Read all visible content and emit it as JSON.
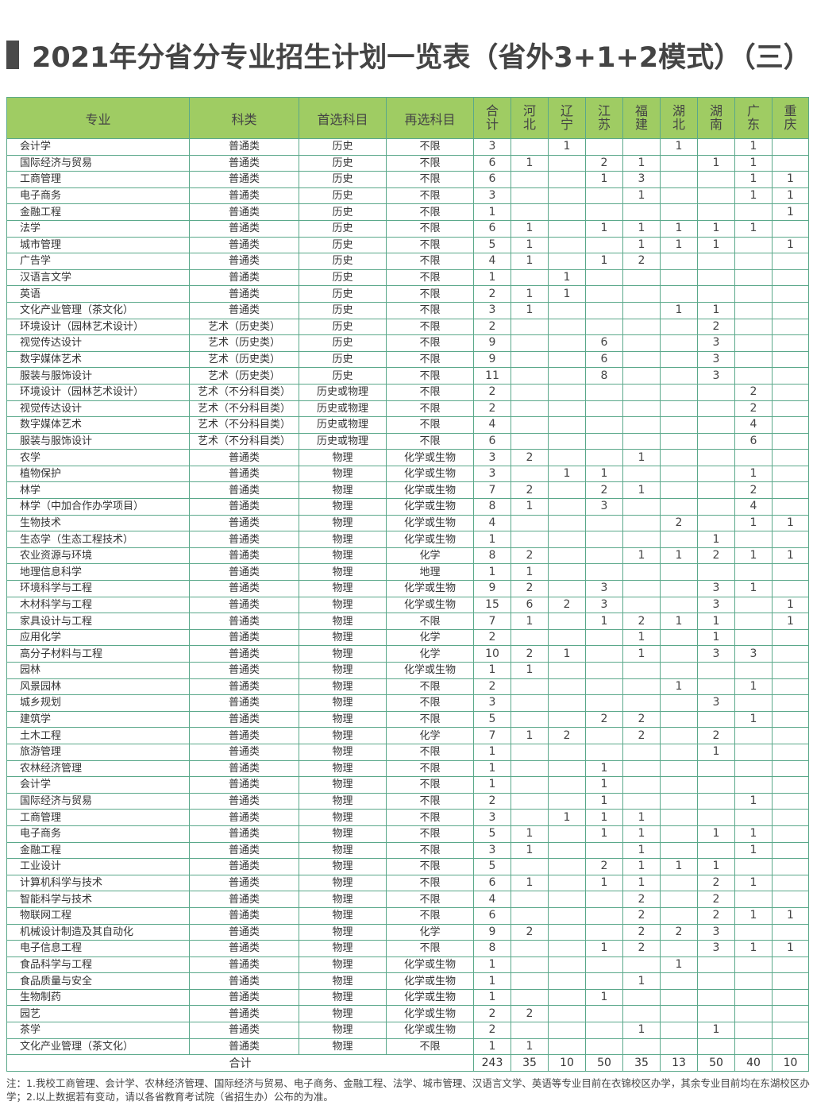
{
  "title": "2021年分省分专业招生计划一览表（省外3+1+2模式）（三）",
  "header": {
    "major": "专业",
    "category": "科类",
    "first_subject": "首选科目",
    "second_subject": "再选科目",
    "total": "合计",
    "provinces": [
      "河北",
      "辽宁",
      "江苏",
      "福建",
      "湖北",
      "湖南",
      "广东",
      "重庆"
    ]
  },
  "rows": [
    [
      "会计学",
      "普通类",
      "历史",
      "不限",
      "3",
      "",
      "1",
      "",
      "",
      "1",
      "",
      "1",
      ""
    ],
    [
      "国际经济与贸易",
      "普通类",
      "历史",
      "不限",
      "6",
      "1",
      "",
      "2",
      "1",
      "",
      "1",
      "1",
      ""
    ],
    [
      "工商管理",
      "普通类",
      "历史",
      "不限",
      "6",
      "",
      "",
      "1",
      "3",
      "",
      "",
      "1",
      "1"
    ],
    [
      "电子商务",
      "普通类",
      "历史",
      "不限",
      "3",
      "",
      "",
      "",
      "1",
      "",
      "",
      "1",
      "1"
    ],
    [
      "金融工程",
      "普通类",
      "历史",
      "不限",
      "1",
      "",
      "",
      "",
      "",
      "",
      "",
      "",
      "1"
    ],
    [
      "法学",
      "普通类",
      "历史",
      "不限",
      "6",
      "1",
      "",
      "1",
      "1",
      "1",
      "1",
      "1",
      ""
    ],
    [
      "城市管理",
      "普通类",
      "历史",
      "不限",
      "5",
      "1",
      "",
      "",
      "1",
      "1",
      "1",
      "",
      "1"
    ],
    [
      "广告学",
      "普通类",
      "历史",
      "不限",
      "4",
      "1",
      "",
      "1",
      "2",
      "",
      "",
      "",
      ""
    ],
    [
      "汉语言文学",
      "普通类",
      "历史",
      "不限",
      "1",
      "",
      "1",
      "",
      "",
      "",
      "",
      "",
      ""
    ],
    [
      "英语",
      "普通类",
      "历史",
      "不限",
      "2",
      "1",
      "1",
      "",
      "",
      "",
      "",
      "",
      ""
    ],
    [
      "文化产业管理（茶文化）",
      "普通类",
      "历史",
      "不限",
      "3",
      "1",
      "",
      "",
      "",
      "1",
      "1",
      "",
      ""
    ],
    [
      "环境设计（园林艺术设计）",
      "艺术（历史类）",
      "历史",
      "不限",
      "2",
      "",
      "",
      "",
      "",
      "",
      "2",
      "",
      ""
    ],
    [
      "视觉传达设计",
      "艺术（历史类）",
      "历史",
      "不限",
      "9",
      "",
      "",
      "6",
      "",
      "",
      "3",
      "",
      ""
    ],
    [
      "数字媒体艺术",
      "艺术（历史类）",
      "历史",
      "不限",
      "9",
      "",
      "",
      "6",
      "",
      "",
      "3",
      "",
      ""
    ],
    [
      "服装与服饰设计",
      "艺术（历史类）",
      "历史",
      "不限",
      "11",
      "",
      "",
      "8",
      "",
      "",
      "3",
      "",
      ""
    ],
    [
      "环境设计（园林艺术设计）",
      "艺术（不分科目类）",
      "历史或物理",
      "不限",
      "2",
      "",
      "",
      "",
      "",
      "",
      "",
      "2",
      ""
    ],
    [
      "视觉传达设计",
      "艺术（不分科目类）",
      "历史或物理",
      "不限",
      "2",
      "",
      "",
      "",
      "",
      "",
      "",
      "2",
      ""
    ],
    [
      "数字媒体艺术",
      "艺术（不分科目类）",
      "历史或物理",
      "不限",
      "4",
      "",
      "",
      "",
      "",
      "",
      "",
      "4",
      ""
    ],
    [
      "服装与服饰设计",
      "艺术（不分科目类）",
      "历史或物理",
      "不限",
      "6",
      "",
      "",
      "",
      "",
      "",
      "",
      "6",
      ""
    ],
    [
      "农学",
      "普通类",
      "物理",
      "化学或生物",
      "3",
      "2",
      "",
      "",
      "1",
      "",
      "",
      "",
      ""
    ],
    [
      "植物保护",
      "普通类",
      "物理",
      "化学或生物",
      "3",
      "",
      "1",
      "1",
      "",
      "",
      "",
      "1",
      ""
    ],
    [
      "林学",
      "普通类",
      "物理",
      "化学或生物",
      "7",
      "2",
      "",
      "2",
      "1",
      "",
      "",
      "2",
      ""
    ],
    [
      "林学（中加合作办学项目）",
      "普通类",
      "物理",
      "化学或生物",
      "8",
      "1",
      "",
      "3",
      "",
      "",
      "",
      "4",
      ""
    ],
    [
      "生物技术",
      "普通类",
      "物理",
      "化学或生物",
      "4",
      "",
      "",
      "",
      "",
      "2",
      "",
      "1",
      "1"
    ],
    [
      "生态学（生态工程技术）",
      "普通类",
      "物理",
      "化学或生物",
      "1",
      "",
      "",
      "",
      "",
      "",
      "1",
      "",
      ""
    ],
    [
      "农业资源与环境",
      "普通类",
      "物理",
      "化学",
      "8",
      "2",
      "",
      "",
      "1",
      "1",
      "2",
      "1",
      "1"
    ],
    [
      "地理信息科学",
      "普通类",
      "物理",
      "地理",
      "1",
      "1",
      "",
      "",
      "",
      "",
      "",
      "",
      ""
    ],
    [
      "环境科学与工程",
      "普通类",
      "物理",
      "化学或生物",
      "9",
      "2",
      "",
      "3",
      "",
      "",
      "3",
      "1",
      ""
    ],
    [
      "木材科学与工程",
      "普通类",
      "物理",
      "化学或生物",
      "15",
      "6",
      "2",
      "3",
      "",
      "",
      "3",
      "",
      "1"
    ],
    [
      "家具设计与工程",
      "普通类",
      "物理",
      "不限",
      "7",
      "1",
      "",
      "1",
      "2",
      "1",
      "1",
      "",
      "1"
    ],
    [
      "应用化学",
      "普通类",
      "物理",
      "化学",
      "2",
      "",
      "",
      "",
      "1",
      "",
      "1",
      "",
      ""
    ],
    [
      "高分子材料与工程",
      "普通类",
      "物理",
      "化学",
      "10",
      "2",
      "1",
      "",
      "1",
      "",
      "3",
      "3",
      ""
    ],
    [
      "园林",
      "普通类",
      "物理",
      "化学或生物",
      "1",
      "1",
      "",
      "",
      "",
      "",
      "",
      "",
      ""
    ],
    [
      "风景园林",
      "普通类",
      "物理",
      "不限",
      "2",
      "",
      "",
      "",
      "",
      "1",
      "",
      "1",
      ""
    ],
    [
      "城乡规划",
      "普通类",
      "物理",
      "不限",
      "3",
      "",
      "",
      "",
      "",
      "",
      "3",
      "",
      ""
    ],
    [
      "建筑学",
      "普通类",
      "物理",
      "不限",
      "5",
      "",
      "",
      "2",
      "2",
      "",
      "",
      "1",
      ""
    ],
    [
      "土木工程",
      "普通类",
      "物理",
      "化学",
      "7",
      "1",
      "2",
      "",
      "2",
      "",
      "2",
      "",
      ""
    ],
    [
      "旅游管理",
      "普通类",
      "物理",
      "不限",
      "1",
      "",
      "",
      "",
      "",
      "",
      "1",
      "",
      ""
    ],
    [
      "农林经济管理",
      "普通类",
      "物理",
      "不限",
      "1",
      "",
      "",
      "1",
      "",
      "",
      "",
      "",
      ""
    ],
    [
      "会计学",
      "普通类",
      "物理",
      "不限",
      "1",
      "",
      "",
      "1",
      "",
      "",
      "",
      "",
      ""
    ],
    [
      "国际经济与贸易",
      "普通类",
      "物理",
      "不限",
      "2",
      "",
      "",
      "1",
      "",
      "",
      "",
      "1",
      ""
    ],
    [
      "工商管理",
      "普通类",
      "物理",
      "不限",
      "3",
      "",
      "1",
      "1",
      "1",
      "",
      "",
      "",
      ""
    ],
    [
      "电子商务",
      "普通类",
      "物理",
      "不限",
      "5",
      "1",
      "",
      "1",
      "1",
      "",
      "1",
      "1",
      ""
    ],
    [
      "金融工程",
      "普通类",
      "物理",
      "不限",
      "3",
      "1",
      "",
      "",
      "1",
      "",
      "",
      "1",
      ""
    ],
    [
      "工业设计",
      "普通类",
      "物理",
      "不限",
      "5",
      "",
      "",
      "2",
      "1",
      "1",
      "1",
      "",
      ""
    ],
    [
      "计算机科学与技术",
      "普通类",
      "物理",
      "不限",
      "6",
      "1",
      "",
      "1",
      "1",
      "",
      "2",
      "1",
      ""
    ],
    [
      "智能科学与技术",
      "普通类",
      "物理",
      "不限",
      "4",
      "",
      "",
      "",
      "2",
      "",
      "2",
      "",
      ""
    ],
    [
      "物联网工程",
      "普通类",
      "物理",
      "不限",
      "6",
      "",
      "",
      "",
      "2",
      "",
      "2",
      "1",
      "1"
    ],
    [
      "机械设计制造及其自动化",
      "普通类",
      "物理",
      "化学",
      "9",
      "2",
      "",
      "",
      "2",
      "2",
      "3",
      "",
      ""
    ],
    [
      "电子信息工程",
      "普通类",
      "物理",
      "不限",
      "8",
      "",
      "",
      "1",
      "2",
      "",
      "3",
      "1",
      "1"
    ],
    [
      "食品科学与工程",
      "普通类",
      "物理",
      "化学或生物",
      "1",
      "",
      "",
      "",
      "",
      "1",
      "",
      "",
      ""
    ],
    [
      "食品质量与安全",
      "普通类",
      "物理",
      "化学或生物",
      "1",
      "",
      "",
      "",
      "1",
      "",
      "",
      "",
      ""
    ],
    [
      "生物制药",
      "普通类",
      "物理",
      "化学或生物",
      "1",
      "",
      "",
      "1",
      "",
      "",
      "",
      "",
      ""
    ],
    [
      "园艺",
      "普通类",
      "物理",
      "化学或生物",
      "2",
      "2",
      "",
      "",
      "",
      "",
      "",
      "",
      ""
    ],
    [
      "茶学",
      "普通类",
      "物理",
      "化学或生物",
      "2",
      "",
      "",
      "",
      "1",
      "",
      "1",
      "",
      ""
    ],
    [
      "文化产业管理（茶文化）",
      "普通类",
      "物理",
      "不限",
      "1",
      "1",
      "",
      "",
      "",
      "",
      "",
      "",
      ""
    ]
  ],
  "totals": {
    "label": "合计",
    "values": [
      "243",
      "35",
      "10",
      "50",
      "35",
      "13",
      "50",
      "40",
      "10"
    ]
  },
  "note": "注：1.我校工商管理、会计学、农林经济管理、国际经济与贸易、电子商务、金融工程、法学、城市管理、汉语言文学、英语等专业目前在衣锦校区办学，其余专业目前均在东湖校区办学；2.以上数据若有变动，请以各省教育考试院（省招生办）公布的为准。",
  "colors": {
    "header_bg": "#9fcc63",
    "border": "#5aa88a",
    "title": "#444444"
  }
}
